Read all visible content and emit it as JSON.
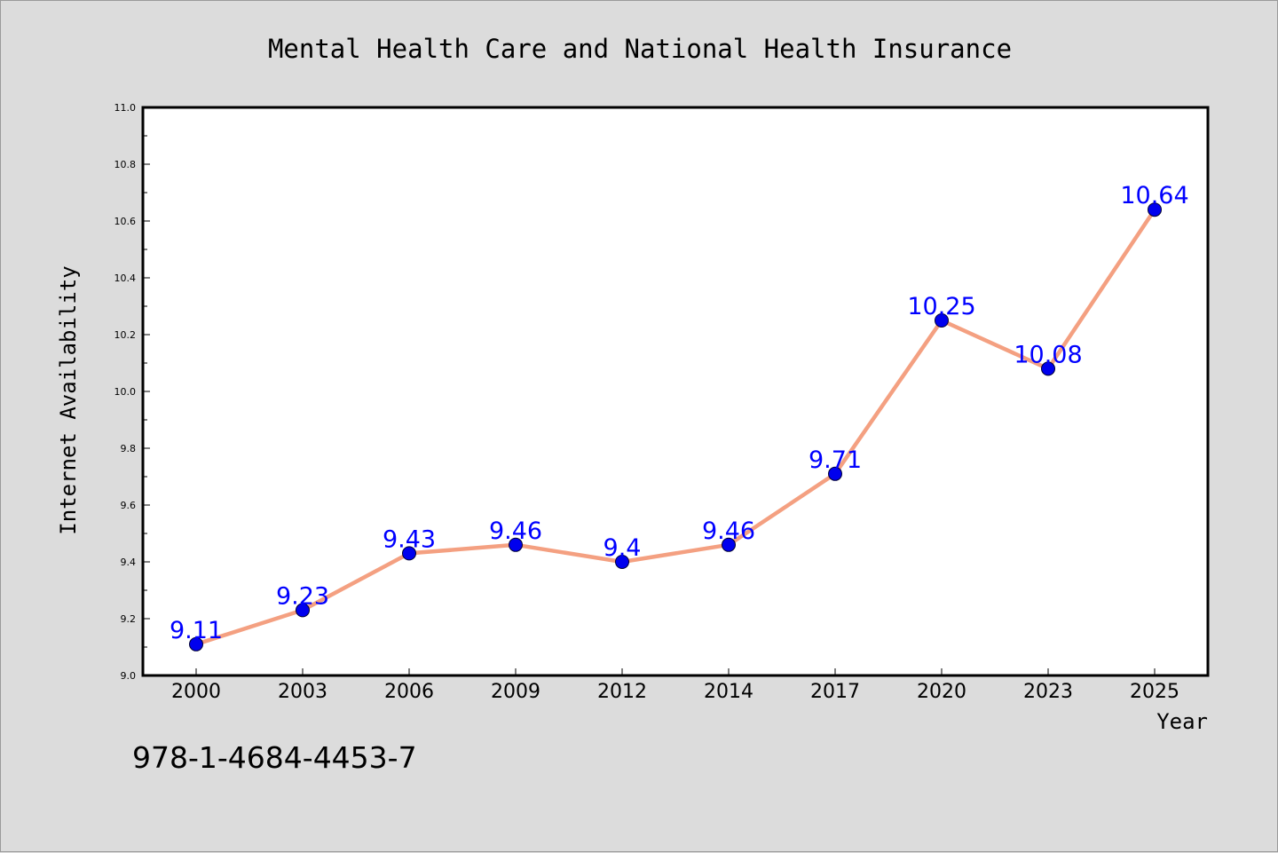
{
  "chart_data": {
    "type": "line",
    "title": "Mental Health Care and National Health Insurance",
    "xlabel": "Year",
    "ylabel": "Internet Availability",
    "categories": [
      "2000",
      "2003",
      "2006",
      "2009",
      "2012",
      "2014",
      "2017",
      "2020",
      "2023",
      "2025"
    ],
    "series": [
      {
        "values": [
          9.11,
          9.23,
          9.43,
          9.46,
          9.4,
          9.46,
          9.71,
          10.25,
          10.08,
          10.64
        ]
      }
    ],
    "data_labels": [
      "9.11",
      "9.23",
      "9.43",
      "9.46",
      "9.4",
      "9.46",
      "9.71",
      "10.25",
      "10.08",
      "10.64"
    ],
    "ylim": [
      9.0,
      11.0
    ],
    "yticks": [
      9.0,
      9.2,
      9.4,
      9.6,
      9.8,
      10.0,
      10.2,
      10.4,
      10.6,
      10.8,
      11.0
    ],
    "ytick_labels": [
      "9.0",
      "9.2",
      "9.4",
      "9.6",
      "9.8",
      "10.0",
      "10.2",
      "10.4",
      "10.6",
      "10.8",
      "11.0"
    ],
    "grid": false,
    "legend": "none",
    "colors": {
      "line": "#f4a081",
      "marker": "#0000ee",
      "label": "#0000ff",
      "plot_bg": "#ffffff",
      "page_bg": "#dcdcdc"
    }
  },
  "footer": {
    "isbn": "978-1-4684-4453-7"
  }
}
